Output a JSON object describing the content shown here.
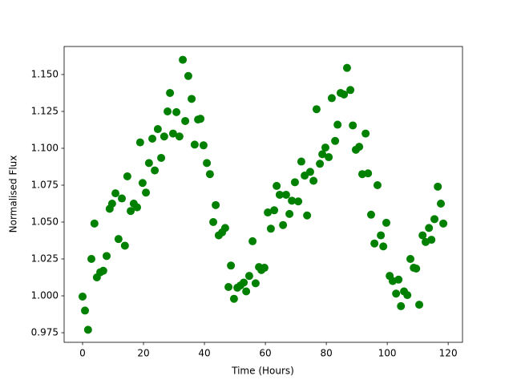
{
  "chart_data": {
    "type": "scatter",
    "xlabel": "Time (Hours)",
    "ylabel": "Normalised Flux",
    "color": "#008000",
    "x": [
      0,
      0.8,
      1.8,
      2.9,
      3.9,
      4.7,
      5.8,
      6.8,
      7.9,
      8.9,
      9.7,
      10.8,
      11.8,
      12.9,
      13.9,
      14.7,
      15.8,
      16.8,
      17.9,
      18.9,
      19.7,
      20.8,
      21.8,
      22.9,
      23.7,
      24.7,
      25.8,
      26.8,
      27.9,
      28.7,
      29.7,
      30.8,
      31.8,
      32.9,
      33.7,
      34.7,
      35.8,
      36.8,
      37.9,
      38.7,
      39.7,
      40.8,
      41.8,
      42.9,
      43.7,
      44.7,
      45.8,
      46.8,
      47.9,
      48.7,
      49.7,
      50.8,
      51.8,
      52.9,
      53.7,
      54.7,
      55.8,
      56.8,
      57.9,
      58.7,
      59.7,
      60.8,
      61.8,
      62.9,
      63.7,
      64.7,
      65.8,
      66.8,
      67.9,
      68.7,
      69.7,
      70.8,
      71.8,
      72.9,
      73.7,
      74.7,
      75.8,
      76.8,
      77.9,
      78.7,
      79.7,
      80.8,
      81.8,
      82.9,
      83.7,
      84.7,
      85.8,
      86.8,
      87.9,
      88.7,
      89.7,
      90.8,
      91.8,
      92.9,
      93.7,
      94.7,
      95.8,
      96.8,
      97.9,
      98.7,
      99.7,
      100.8,
      101.8,
      102.9,
      103.7,
      104.5,
      105.5,
      106.6,
      107.6,
      108.7,
      109.5,
      110.5,
      111.6,
      112.6,
      113.7,
      114.5,
      115.5,
      116.6,
      117.6,
      118.4
    ],
    "values": [
      0.9995,
      0.99,
      0.977,
      1.025,
      1.049,
      1.0125,
      1.016,
      1.017,
      1.027,
      1.059,
      1.0625,
      1.0695,
      1.0385,
      1.066,
      1.034,
      1.081,
      1.0575,
      1.0625,
      1.06,
      1.104,
      1.0765,
      1.07,
      1.09,
      1.1065,
      1.085,
      1.113,
      1.0935,
      1.108,
      1.125,
      1.1375,
      1.11,
      1.1245,
      1.108,
      1.16,
      1.1185,
      1.149,
      1.1335,
      1.1025,
      1.1195,
      1.12,
      1.102,
      1.09,
      1.0825,
      1.05,
      1.0615,
      1.041,
      1.043,
      1.046,
      1.006,
      1.0205,
      0.998,
      1.0055,
      1.007,
      1.009,
      1.003,
      1.0135,
      1.037,
      1.0085,
      1.0195,
      1.0175,
      1.019,
      1.0565,
      1.0455,
      1.058,
      1.0745,
      1.0685,
      1.048,
      1.0685,
      1.0555,
      1.0645,
      1.077,
      1.064,
      1.091,
      1.0815,
      1.0545,
      1.084,
      1.078,
      1.1265,
      1.0895,
      1.096,
      1.1005,
      1.094,
      1.134,
      1.105,
      1.116,
      1.1375,
      1.1365,
      1.1545,
      1.1395,
      1.1155,
      1.099,
      1.101,
      1.0825,
      1.11,
      1.083,
      1.055,
      1.0355,
      1.075,
      1.041,
      1.0335,
      1.0495,
      1.0135,
      1.01,
      1.0015,
      1.011,
      0.993,
      1.003,
      1.0005,
      1.025,
      1.019,
      1.0185,
      0.994,
      1.041,
      1.0365,
      1.046,
      1.038,
      1.052,
      1.074,
      1.0625,
      1.049
    ],
    "xlim": [
      -6.05,
      124.7
    ],
    "ylim": [
      0.9685,
      1.169
    ],
    "xticks": [
      0,
      20,
      40,
      60,
      80,
      100,
      120
    ],
    "yticks": [
      0.975,
      {
        "value": 1.0,
        "label": "1.000"
      },
      1.025,
      {
        "value": 1.05,
        "label": "1.050"
      },
      1.075,
      {
        "value": 1.1,
        "label": "1.100"
      },
      1.125,
      {
        "value": 1.15,
        "label": "1.150"
      }
    ]
  }
}
